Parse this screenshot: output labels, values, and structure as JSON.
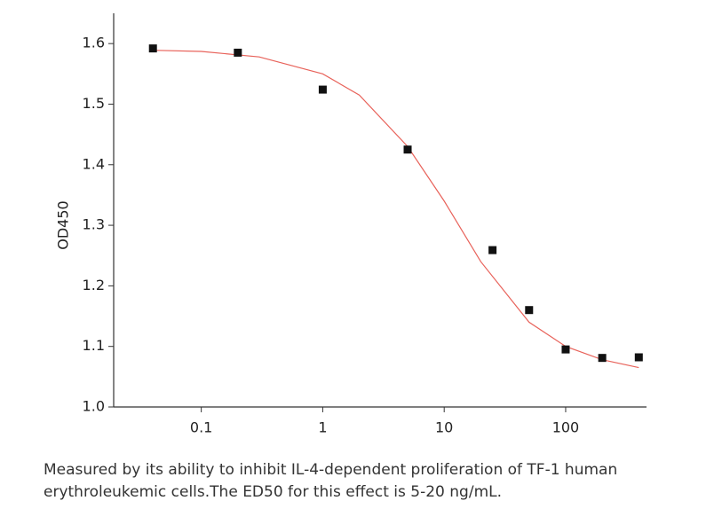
{
  "chart_data": {
    "type": "scatter",
    "log_x": true,
    "y_label": "OD450",
    "x": [
      0.04,
      0.2,
      1,
      5,
      25,
      50,
      100,
      200,
      400
    ],
    "values": [
      1.592,
      1.585,
      1.524,
      1.425,
      1.259,
      1.16,
      1.095,
      1.081,
      1.082
    ],
    "color": "#111111",
    "fit": {
      "type": "line",
      "color": "#e8625a",
      "x": [
        0.04,
        0.1,
        0.3,
        1,
        2,
        5,
        10,
        20,
        50,
        100,
        200,
        400
      ],
      "values": [
        1.589,
        1.587,
        1.578,
        1.55,
        1.515,
        1.43,
        1.34,
        1.24,
        1.14,
        1.1,
        1.078,
        1.065
      ]
    },
    "xlim": [
      0.019,
      463
    ],
    "xticks": [
      0.1,
      1,
      10,
      100
    ],
    "ylim": [
      1.0,
      1.65
    ],
    "yticks": [
      {
        "value": 1.0,
        "label": "1.0"
      },
      1.1,
      1.2,
      1.3,
      1.4,
      1.5,
      1.6
    ],
    "caption": [
      "Measured by its ability to inhibit IL-4-dependent proliferation of TF-1 human",
      "erythroleukemic cells.The ED50 for this effect is 5-20 ng/mL."
    ]
  }
}
